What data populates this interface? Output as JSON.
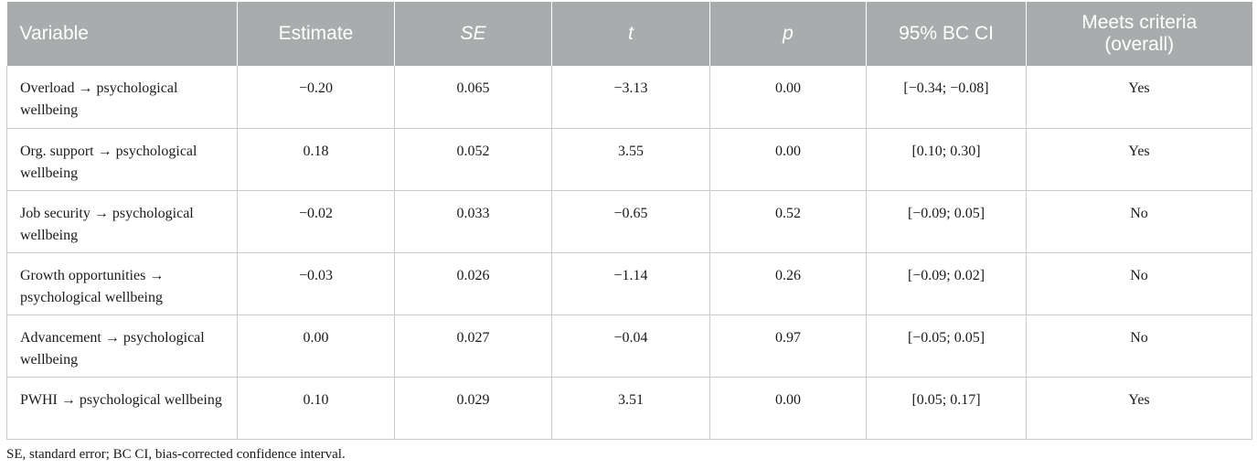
{
  "table": {
    "headers": [
      "Variable",
      "Estimate",
      "SE",
      "t",
      "p",
      "95% BC CI",
      "Meets criteria\n(overall)"
    ],
    "rows": [
      [
        "Overload →  psychological wellbeing",
        "−0.20",
        "0.065",
        "−3.13",
        "0.00",
        "[−0.34; −0.08]",
        "Yes"
      ],
      [
        "Org. support → psychological wellbeing",
        "0.18",
        "0.052",
        "3.55",
        "0.00",
        "[0.10; 0.30]",
        "Yes"
      ],
      [
        "Job security → psychological wellbeing",
        "−0.02",
        "0.033",
        "−0.65",
        "0.52",
        "[−0.09; 0.05]",
        "No"
      ],
      [
        "Growth opportunities → psychological wellbeing",
        "−0.03",
        "0.026",
        "−1.14",
        "0.26",
        "[−0.09; 0.02]",
        "No"
      ],
      [
        "Advancement → psychological wellbeing",
        "0.00",
        "0.027",
        "−0.04",
        "0.97",
        "[−0.05; 0.05]",
        "No"
      ],
      [
        "PWHI →  psychological wellbeing",
        "0.10",
        "0.029",
        "3.51",
        "0.00",
        "[0.05; 0.17]",
        "Yes"
      ]
    ]
  },
  "footnote": "SE, standard error; BC CI, bias-corrected confidence interval.",
  "colors": {
    "header_bg": "#a9acad",
    "header_text": "#ffffff",
    "grid_line": "#c8cacb"
  }
}
